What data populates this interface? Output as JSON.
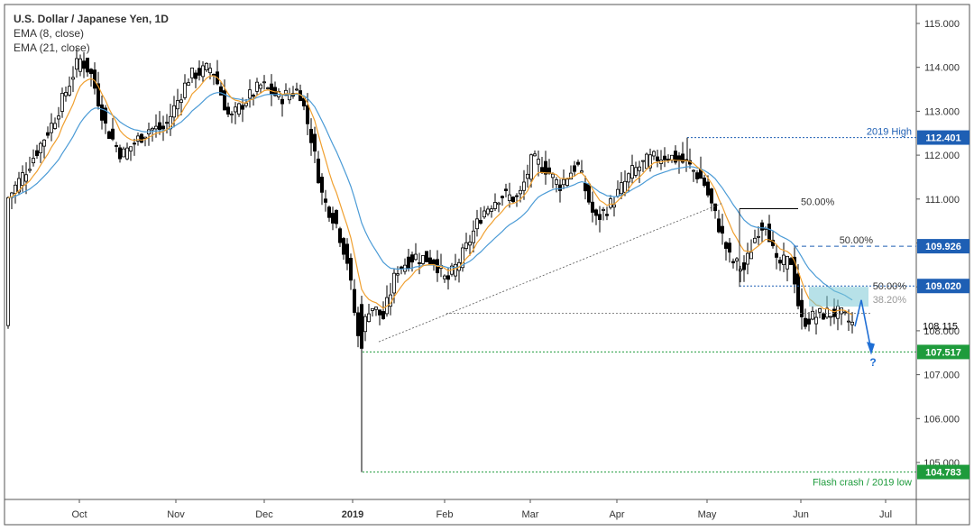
{
  "legend": {
    "title": "U.S. Dollar / Japanese Yen, 1D",
    "ema_fast": "EMA (8, close)",
    "ema_slow": "EMA (21, close)"
  },
  "colors": {
    "up": "#ffffff",
    "down": "#000000",
    "wick": "#000000",
    "ema_fast": "#f0a030",
    "ema_slow": "#4b9bd6",
    "blue_label": "#1e5fb4",
    "green_label": "#1e9b3c",
    "zone": "#7cc9d6",
    "arrow": "#1f6ed4"
  },
  "chart_data": {
    "type": "candlestick",
    "title": "U.S. Dollar / Japanese Yen, 1D",
    "ylim": [
      104.3,
      115.5
    ],
    "x_ticks": [
      "Oct",
      "Nov",
      "Dec",
      "2019",
      "Feb",
      "Mar",
      "Apr",
      "May",
      "Jun",
      "Jul"
    ],
    "y_ticks": [
      "115.000",
      "114.000",
      "113.000",
      "112.000",
      "111.000",
      "110.000",
      "109.000",
      "108.000",
      "107.000",
      "106.000",
      "105.000"
    ],
    "ohlc_series": [
      [
        "Sep 24",
        112.8,
        113.0,
        112.6,
        112.9
      ],
      [
        "Oct 1",
        113.7,
        114.5,
        113.5,
        114.3
      ],
      [
        "Oct 4",
        114.0,
        114.5,
        113.6,
        113.7
      ],
      [
        "Oct 10",
        112.2,
        112.6,
        112.0,
        112.2
      ],
      [
        "Oct 15",
        112.0,
        112.3,
        111.7,
        111.8
      ],
      [
        "Oct 24",
        112.2,
        112.5,
        111.9,
        112.2
      ],
      [
        "Oct 31",
        113.0,
        113.3,
        112.8,
        112.9
      ],
      [
        "Nov 12",
        113.8,
        114.2,
        113.6,
        113.9
      ],
      [
        "Nov 20",
        112.8,
        113.0,
        112.5,
        112.7
      ],
      [
        "Dec 4",
        113.2,
        113.5,
        112.9,
        113.1
      ],
      [
        "Dec 13",
        113.6,
        113.8,
        113.4,
        113.6
      ],
      [
        "Dec 21",
        111.2,
        111.4,
        110.8,
        111.0
      ],
      [
        "Dec 27",
        110.5,
        110.9,
        110.3,
        110.6
      ],
      [
        "Jan 3",
        108.8,
        109.0,
        104.783,
        107.7
      ],
      [
        "Jan 10",
        108.2,
        108.5,
        107.8,
        108.4
      ],
      [
        "Jan 25",
        109.5,
        109.8,
        109.2,
        109.6
      ],
      [
        "Feb 5",
        109.9,
        110.1,
        109.6,
        109.9
      ],
      [
        "Feb 21",
        110.7,
        111.0,
        110.5,
        110.8
      ],
      [
        "Mar 5",
        111.8,
        112.1,
        111.6,
        111.8
      ],
      [
        "Mar 15",
        111.5,
        111.7,
        111.2,
        111.5
      ],
      [
        "Mar 25",
        110.0,
        110.4,
        109.8,
        110.1
      ],
      [
        "Apr 10",
        111.0,
        111.3,
        110.8,
        111.1
      ],
      [
        "Apr 17",
        112.0,
        112.2,
        111.8,
        112.0
      ],
      [
        "Apr 24",
        112.0,
        112.401,
        111.8,
        111.9
      ],
      [
        "May 7",
        110.1,
        110.3,
        109.5,
        109.8
      ],
      [
        "May 13",
        109.3,
        109.6,
        109.0,
        109.4
      ],
      [
        "May 21",
        110.3,
        110.7,
        110.1,
        110.5
      ],
      [
        "May 30",
        109.9,
        110.0,
        109.5,
        109.6
      ],
      [
        "Jun 4",
        108.0,
        108.3,
        107.8,
        108.1
      ],
      [
        "Jun 12",
        108.5,
        108.6,
        108.2,
        108.4
      ],
      [
        "Jun 19",
        108.4,
        108.6,
        108.0,
        108.115
      ]
    ],
    "levels": [
      {
        "label": "2019 High",
        "price": "112.401",
        "value": 112.401,
        "style": "blue"
      },
      {
        "label": "50.00%",
        "price": "109.926",
        "value": 109.926,
        "style": "blue"
      },
      {
        "label": "50.00%",
        "price": "109.020",
        "value": 109.02,
        "style": "blue"
      },
      {
        "label": "",
        "price": "107.517",
        "value": 107.517,
        "style": "green"
      },
      {
        "label": "Flash crash / 2019 low",
        "price": "104.783",
        "value": 104.783,
        "style": "green"
      }
    ],
    "last_price": "108.115",
    "annotations": {
      "fib_top": "50.00%",
      "fib_zone_50": "50.00%",
      "fib_zone_382": "38.20%",
      "question": "?"
    }
  }
}
